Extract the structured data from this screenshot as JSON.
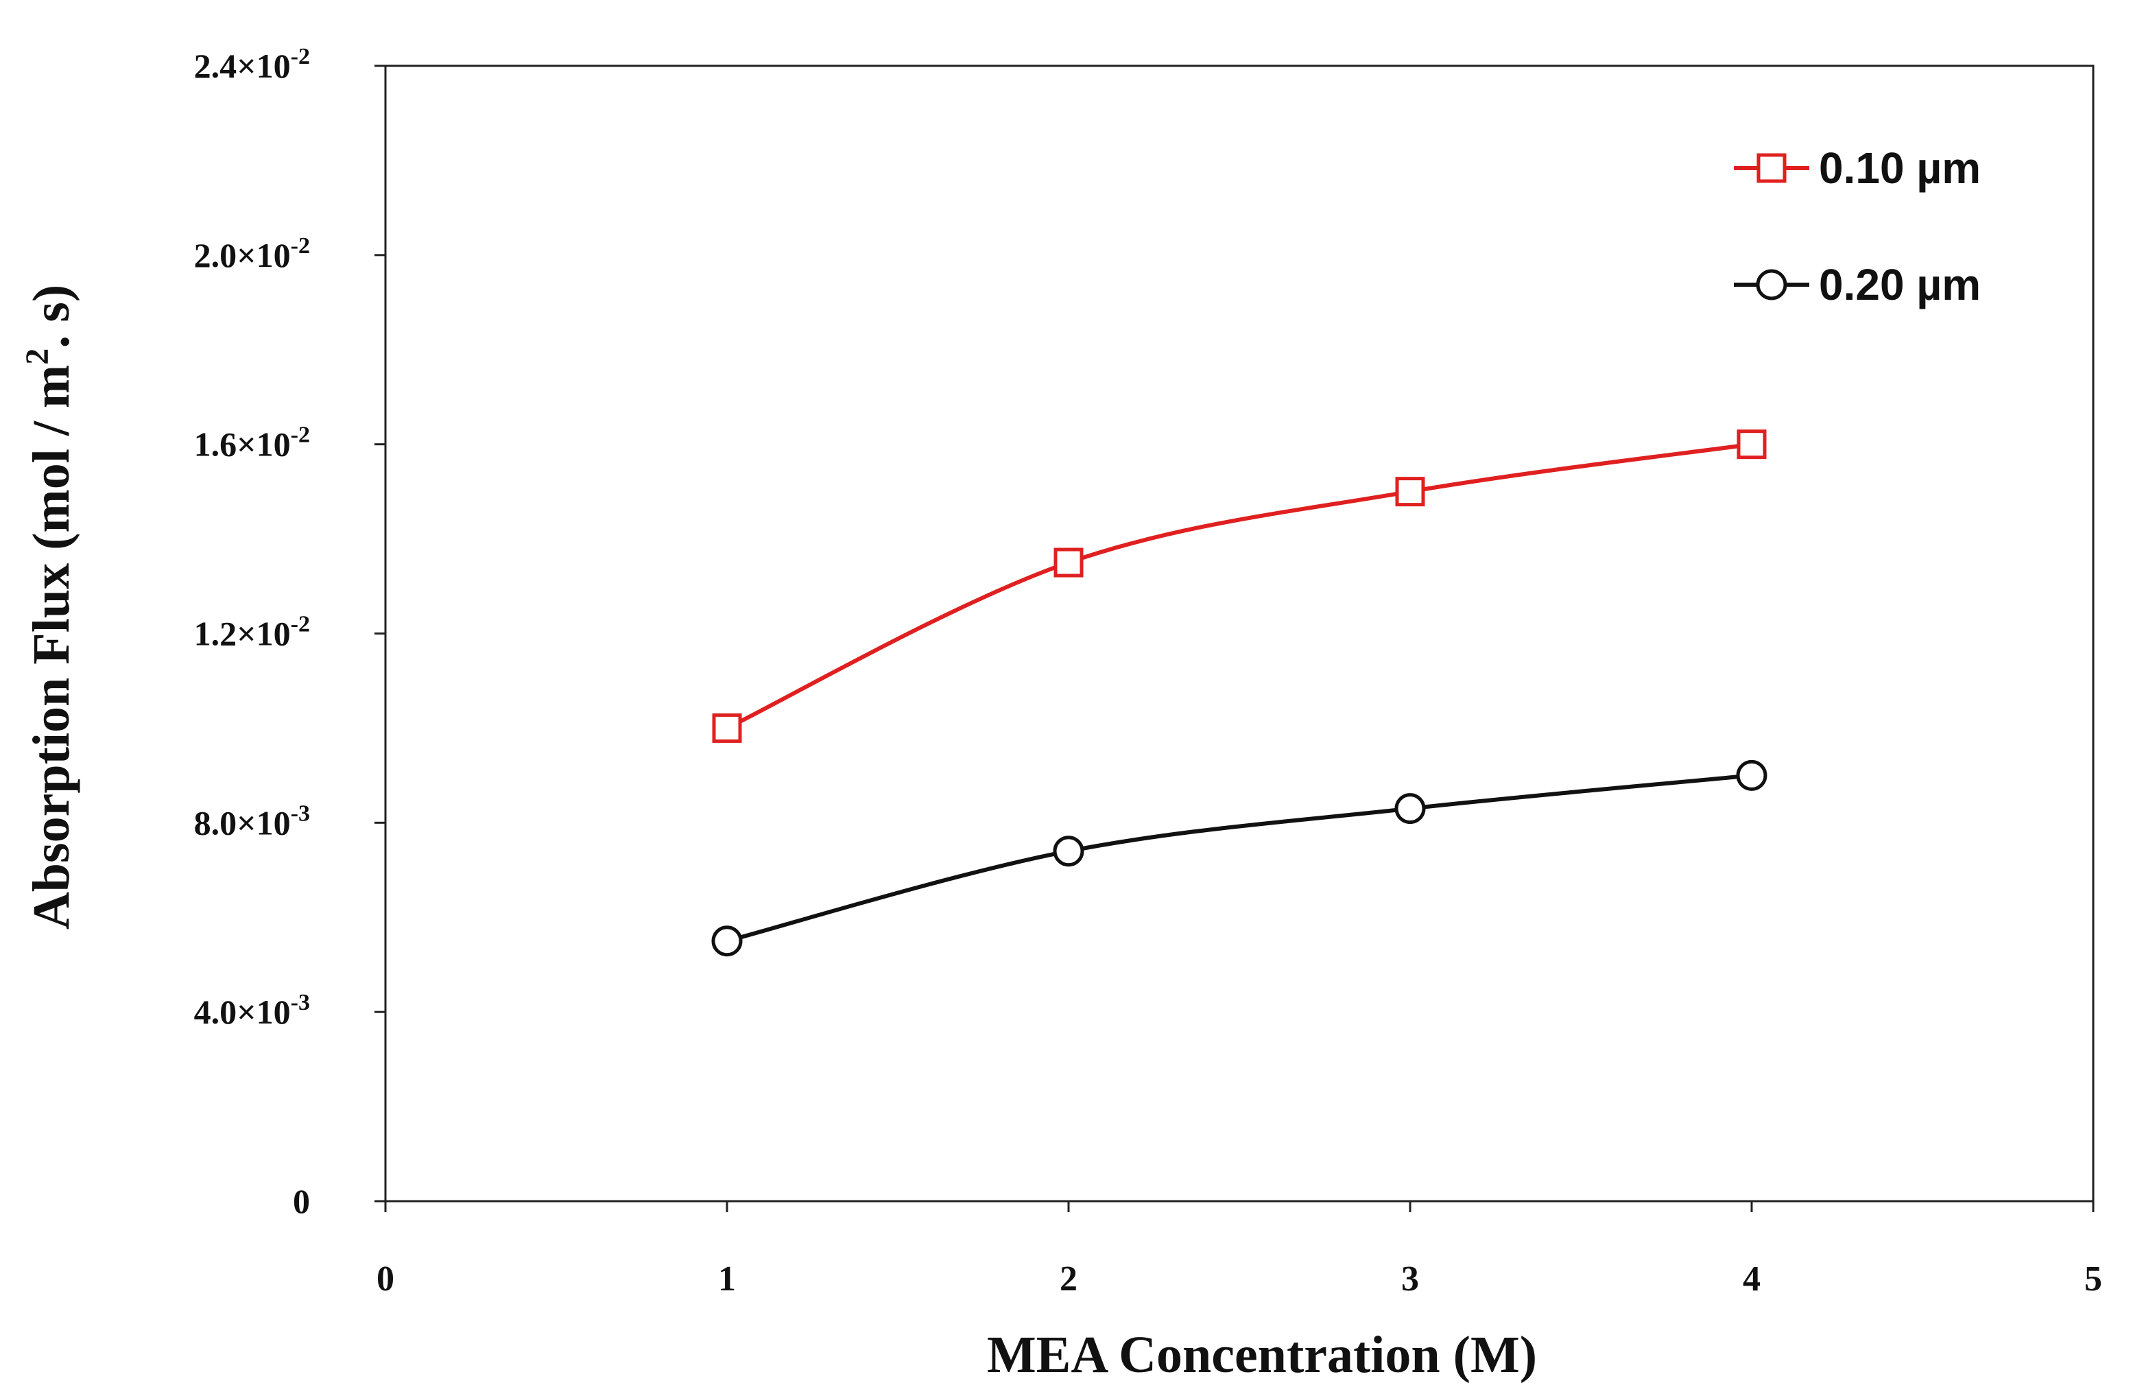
{
  "chart_data": {
    "type": "line",
    "xlabel": "MEA Concentration (M)",
    "ylabel": {
      "prefix": "Absorption Flux (mol / m",
      "superscript": "2",
      "suffix": ". s)"
    },
    "xlim": [
      0,
      5
    ],
    "ylim": [
      0,
      0.024
    ],
    "xticks": [
      {
        "value": 0,
        "label": "0"
      },
      {
        "value": 1,
        "label": "1"
      },
      {
        "value": 2,
        "label": "2"
      },
      {
        "value": 3,
        "label": "3"
      },
      {
        "value": 4,
        "label": "4"
      },
      {
        "value": 5,
        "label": "5"
      }
    ],
    "yticks": [
      {
        "value": 0,
        "mantissa": "0",
        "exponent": ""
      },
      {
        "value": 0.004,
        "mantissa": "4.0×10",
        "exponent": "-3"
      },
      {
        "value": 0.008,
        "mantissa": "8.0×10",
        "exponent": "-3"
      },
      {
        "value": 0.012,
        "mantissa": "1.2×10",
        "exponent": "-2"
      },
      {
        "value": 0.016,
        "mantissa": "1.6×10",
        "exponent": "-2"
      },
      {
        "value": 0.02,
        "mantissa": "2.0×10",
        "exponent": "-2"
      },
      {
        "value": 0.024,
        "mantissa": "2.4×10",
        "exponent": "-2"
      }
    ],
    "grid": false,
    "legend_position": "top-right",
    "series": [
      {
        "name": "0.10 µm",
        "color": "#e02020",
        "marker": "square",
        "x": [
          1,
          2,
          3,
          4
        ],
        "y": [
          0.01,
          0.0135,
          0.015,
          0.016
        ]
      },
      {
        "name": "0.20 µm",
        "color": "#111111",
        "marker": "circle",
        "x": [
          1,
          2,
          3,
          4
        ],
        "y": [
          0.0055,
          0.0074,
          0.0083,
          0.009
        ]
      }
    ]
  }
}
